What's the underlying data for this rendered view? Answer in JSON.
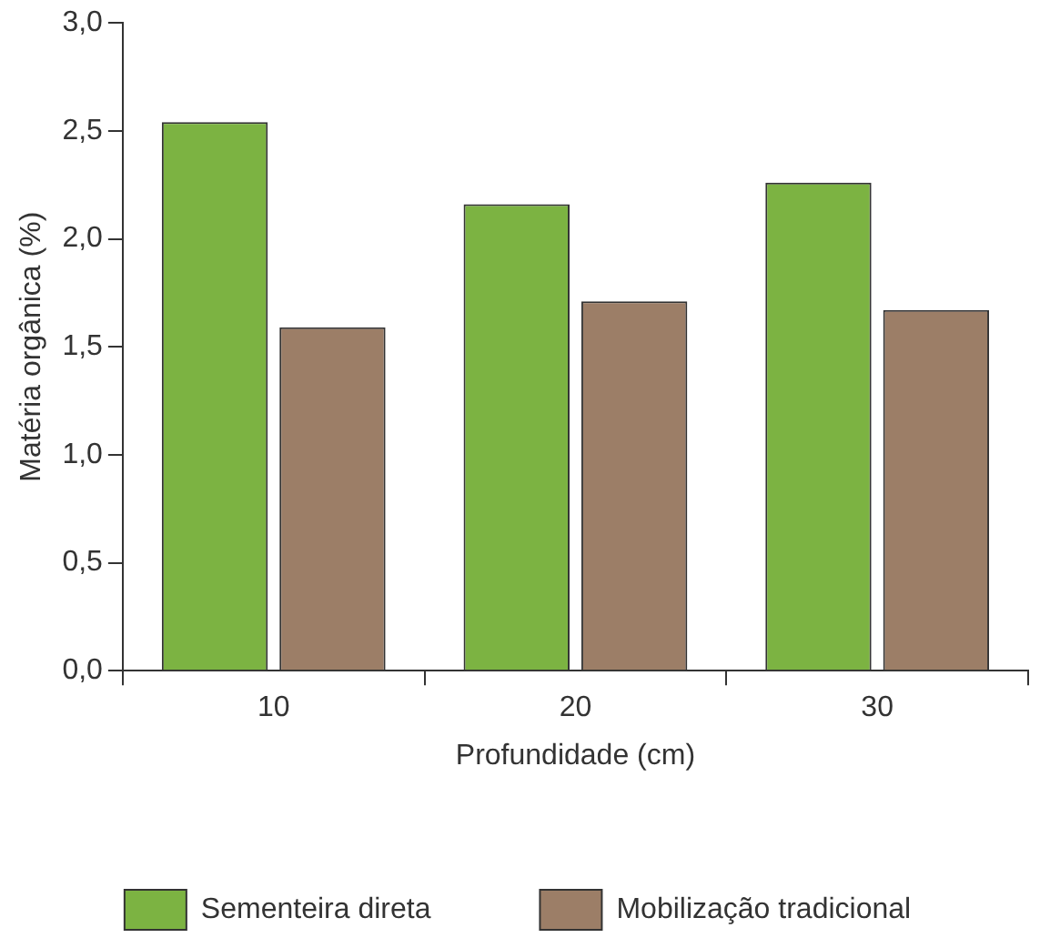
{
  "chart_data": {
    "type": "bar",
    "xlabel": "Profundidade (cm)",
    "ylabel": "Matéria orgânica (%)",
    "categories": [
      "10",
      "20",
      "30"
    ],
    "series": [
      {
        "name": "Sementeira direta",
        "color": "#7cb342",
        "values": [
          2.54,
          2.16,
          2.26
        ]
      },
      {
        "name": "Mobilização tradicional",
        "color": "#9c7e67",
        "values": [
          1.59,
          1.71,
          1.67
        ]
      }
    ],
    "ylim": [
      0,
      3
    ],
    "yticks": [
      {
        "value": 0,
        "label": "0,0"
      },
      {
        "value": 0.5,
        "label": "0,5"
      },
      {
        "value": 1,
        "label": "1,0"
      },
      {
        "value": 1.5,
        "label": "1,5"
      },
      {
        "value": 2,
        "label": "2,0"
      },
      {
        "value": 2.5,
        "label": "2,5"
      },
      {
        "value": 3,
        "label": "3,0"
      }
    ],
    "grid": false,
    "legend": "bottom"
  }
}
